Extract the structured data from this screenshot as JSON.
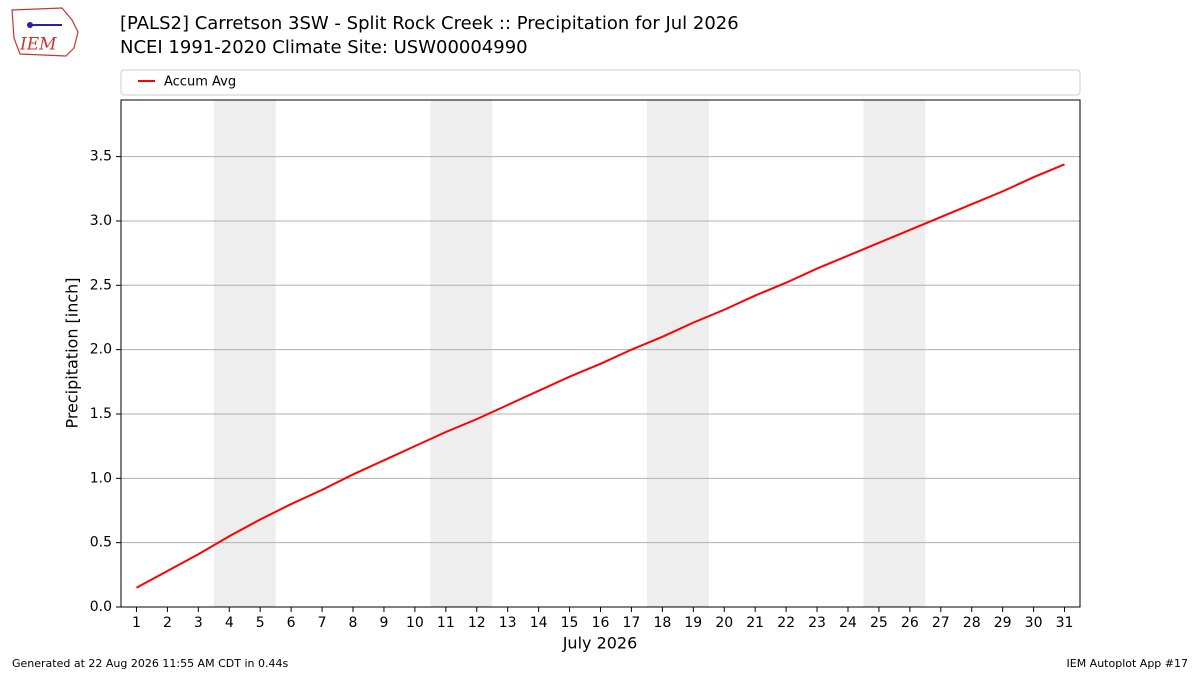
{
  "logo_text": "IEM",
  "footer": {
    "left": "Generated at 22 Aug 2026 11:55 AM CDT in 0.44s",
    "right": "IEM Autoplot App #17"
  },
  "chart_data": {
    "type": "line",
    "title": "[PALS2] Carretson 3SW - Split Rock Creek :: Precipitation for Jul 2026",
    "subtitle": "NCEI 1991-2020 Climate Site: USW00004990",
    "x_label": "July 2026",
    "y_label": "Precipitation [inch]",
    "x": [
      1,
      2,
      3,
      4,
      5,
      6,
      7,
      8,
      9,
      10,
      11,
      12,
      13,
      14,
      15,
      16,
      17,
      18,
      19,
      20,
      21,
      22,
      23,
      24,
      25,
      26,
      27,
      28,
      29,
      30,
      31
    ],
    "series": [
      {
        "name": "Accum Avg",
        "color": "#ff0000",
        "values": [
          0.15,
          0.28,
          0.41,
          0.55,
          0.68,
          0.8,
          0.91,
          1.03,
          1.14,
          1.25,
          1.36,
          1.46,
          1.57,
          1.68,
          1.79,
          1.89,
          2.0,
          2.1,
          2.21,
          2.31,
          2.42,
          2.52,
          2.63,
          2.73,
          2.83,
          2.93,
          3.03,
          3.13,
          3.23,
          3.34,
          3.44
        ]
      }
    ],
    "shaded_ranges": [
      [
        3.5,
        5.5
      ],
      [
        10.5,
        12.5
      ],
      [
        17.5,
        19.5
      ],
      [
        24.5,
        26.5
      ]
    ],
    "shade_color": "#eeeeee",
    "xlim": [
      0.5,
      31.5
    ],
    "xticks": [
      1,
      2,
      3,
      4,
      5,
      6,
      7,
      8,
      9,
      10,
      11,
      12,
      13,
      14,
      15,
      16,
      17,
      18,
      19,
      20,
      21,
      22,
      23,
      24,
      25,
      26,
      27,
      28,
      29,
      30,
      31
    ],
    "ylim": [
      0,
      3.94
    ],
    "yticks": [
      {
        "value": 0,
        "label": "0.0"
      },
      0.5,
      {
        "value": 1,
        "label": "1.0"
      },
      1.5,
      {
        "value": 2,
        "label": "2.0"
      },
      2.5,
      {
        "value": 3,
        "label": "3.0"
      },
      3.5
    ],
    "grid": true,
    "legend": "top"
  }
}
